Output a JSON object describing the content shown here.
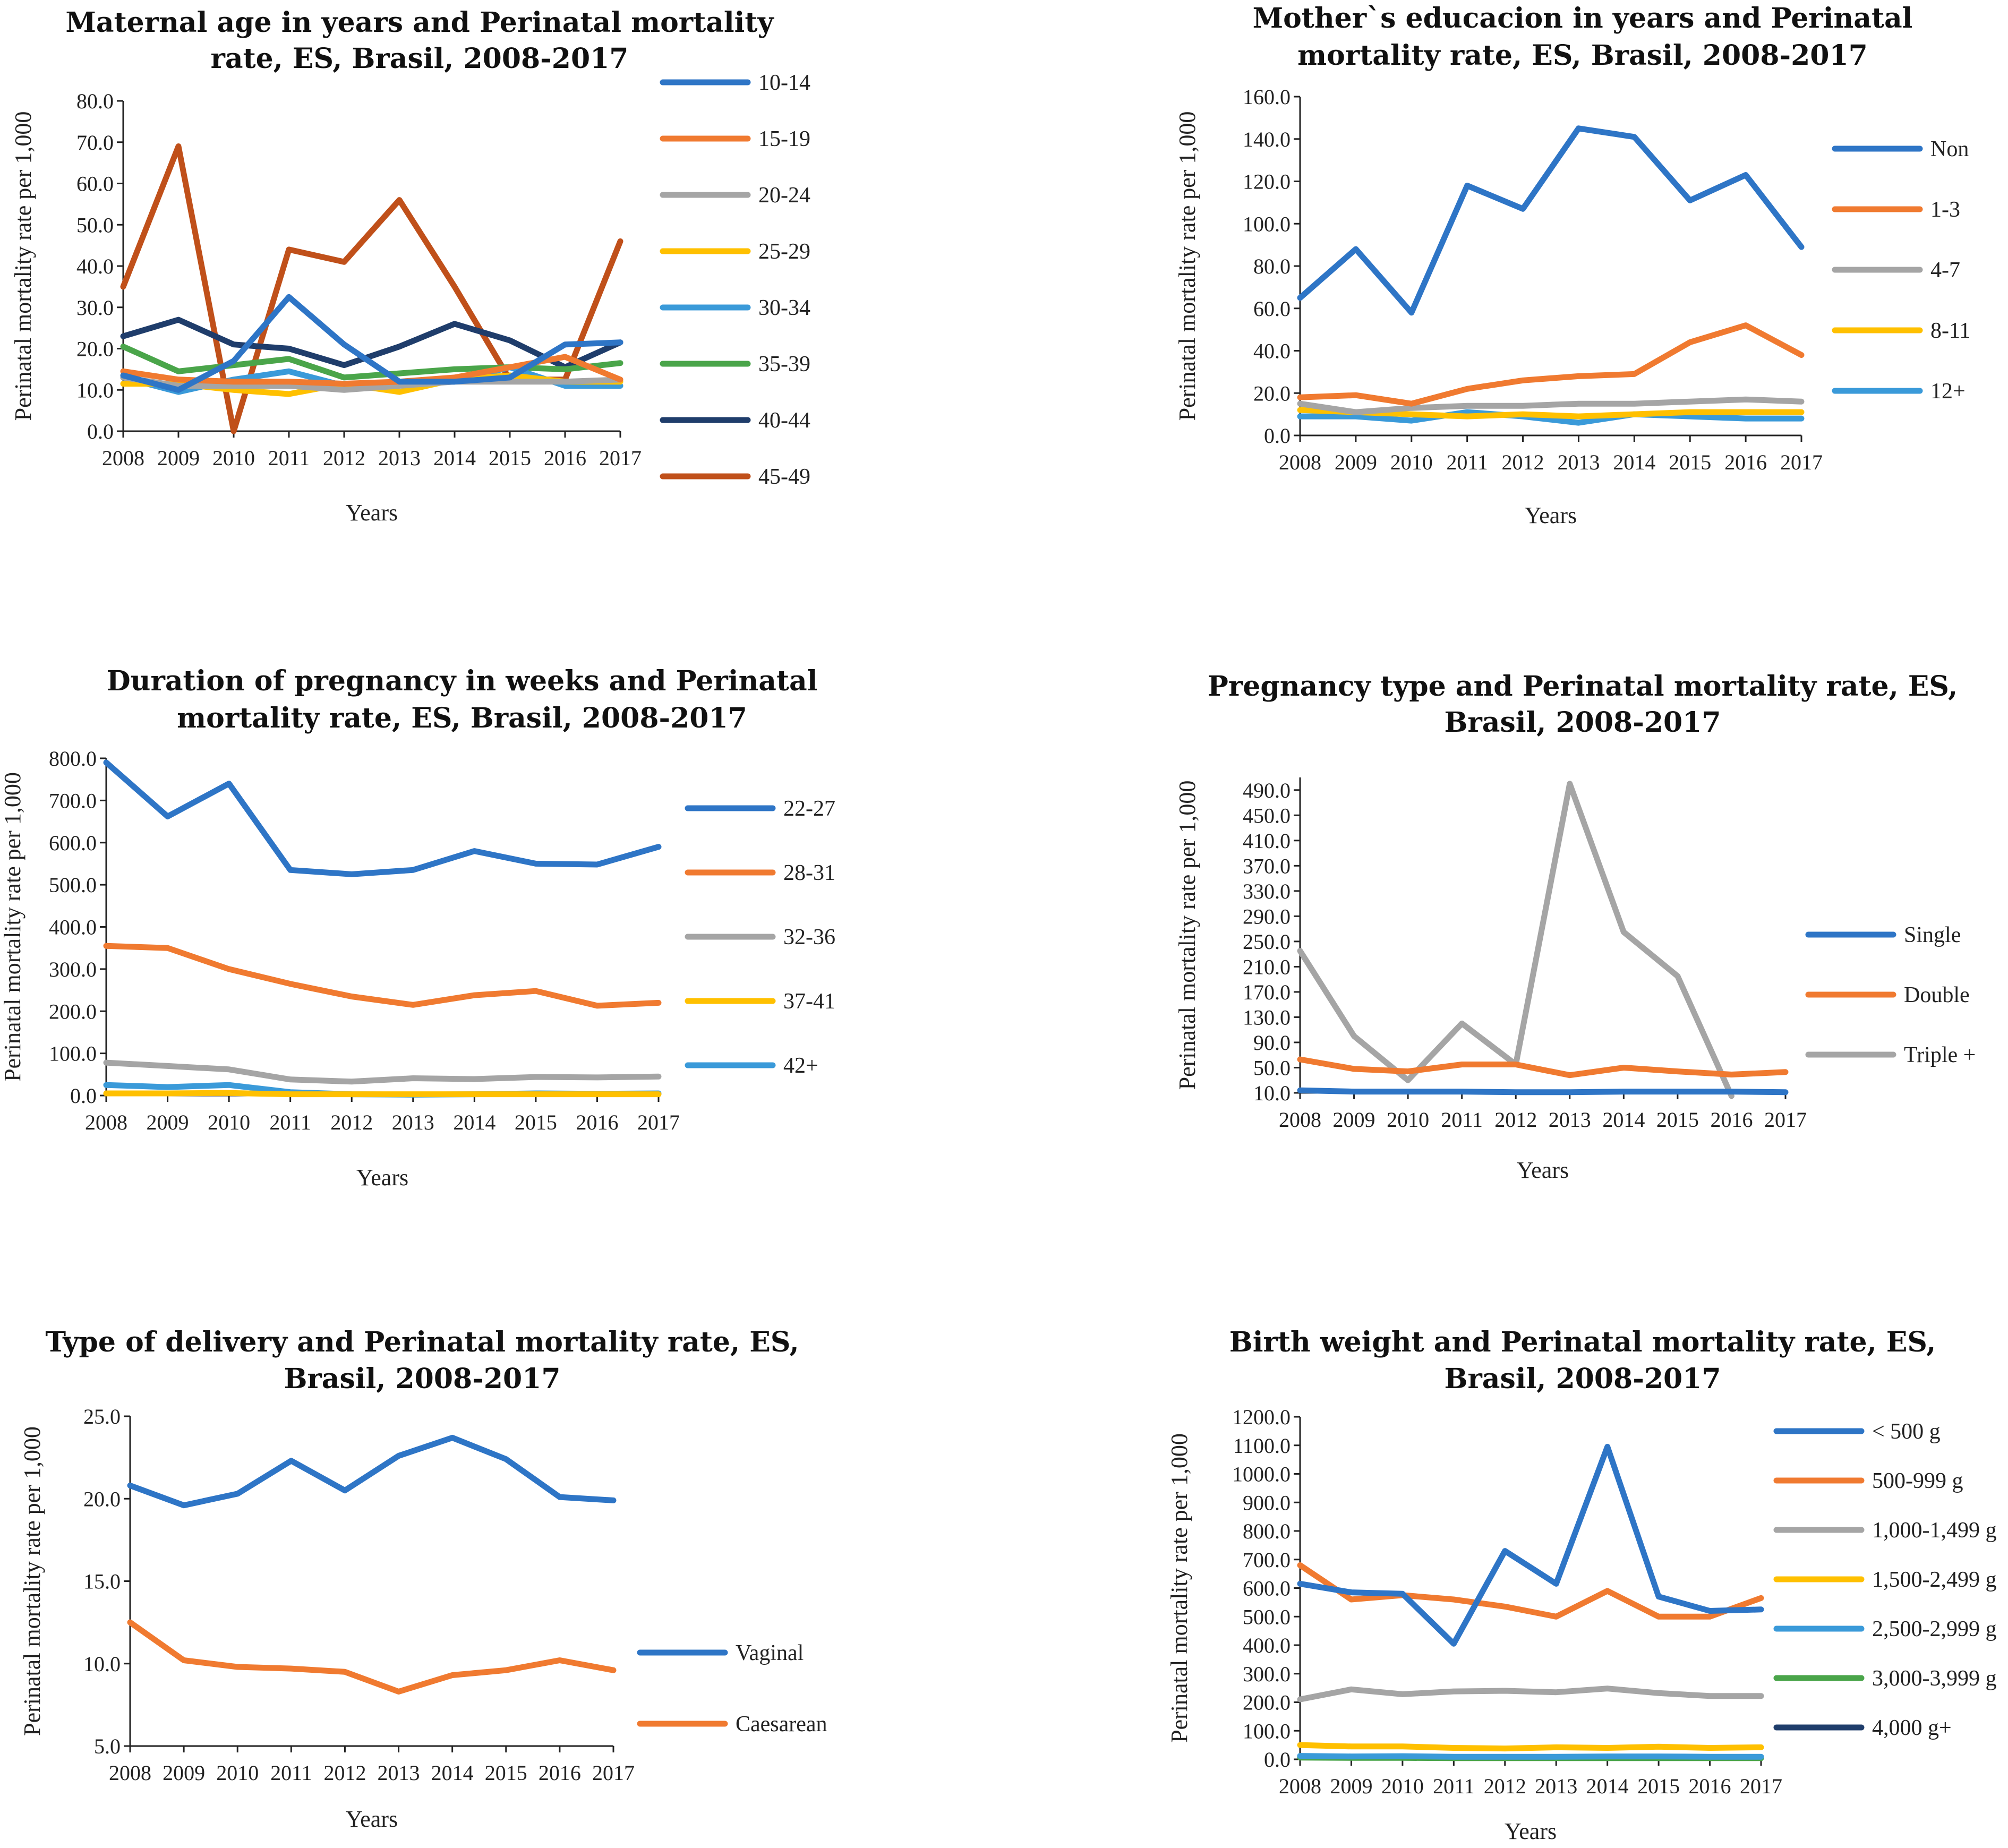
{
  "colors": {
    "blue": "#2e75c6",
    "orange": "#f07a30",
    "gray": "#a5a5a5",
    "yellow": "#ffc000",
    "lightblue": "#3a9ad9",
    "green": "#4aa54a",
    "navy": "#1f3d6b",
    "brown": "#c0501a"
  },
  "chart_data": [
    {
      "id": "maternal-age",
      "type": "line",
      "title": [
        "Maternal age in years and Perinatal mortality",
        "rate, ES, Brasil, 2008-2017"
      ],
      "xlabel": "Years",
      "ylabel": "Perinatal mortality rate per 1,000",
      "x": [
        "2008",
        "2009",
        "2010",
        "2011",
        "2012",
        "2013",
        "2014",
        "2015",
        "2016",
        "2017"
      ],
      "ylim": [
        0,
        80
      ],
      "yticks": [
        "0.0",
        "10.0",
        "20.0",
        "30.0",
        "40.0",
        "50.0",
        "60.0",
        "70.0",
        "80.0"
      ],
      "legend_position": "right",
      "series": [
        {
          "name": "10-14",
          "color": "blue",
          "values": [
            13.5,
            10,
            17,
            32.5,
            21,
            12,
            12,
            13,
            21,
            21.5
          ]
        },
        {
          "name": "15-19",
          "color": "orange",
          "values": [
            14.5,
            12.5,
            12,
            12,
            11.5,
            12,
            13,
            15.5,
            18,
            12.5
          ]
        },
        {
          "name": "20-24",
          "color": "gray",
          "values": [
            13,
            11,
            11,
            11,
            10,
            11,
            12,
            12,
            12,
            12.5
          ]
        },
        {
          "name": "25-29",
          "color": "yellow",
          "values": [
            11.5,
            11.5,
            10,
            9,
            11.5,
            9.5,
            12.5,
            13.5,
            12,
            12
          ]
        },
        {
          "name": "30-34",
          "color": "lightblue",
          "values": [
            13,
            9.5,
            12.5,
            14.5,
            11,
            11.5,
            12,
            15.5,
            11,
            11
          ]
        },
        {
          "name": "35-39",
          "color": "green",
          "values": [
            20.5,
            14.5,
            16,
            17.5,
            13,
            14,
            15,
            15.5,
            15,
            16.5
          ]
        },
        {
          "name": "40-44",
          "color": "navy",
          "values": [
            23,
            27,
            21,
            20,
            16,
            20.5,
            26,
            22,
            15.5,
            21.5
          ]
        },
        {
          "name": "45-49",
          "color": "brown",
          "values": [
            35,
            69,
            0,
            44,
            41,
            56,
            35,
            12.5,
            12.5,
            46
          ]
        }
      ]
    },
    {
      "id": "mother-education",
      "type": "line",
      "title": [
        "Mother`s educacion in years and Perinatal",
        "mortality rate, ES, Brasil, 2008-2017"
      ],
      "xlabel": "Years",
      "ylabel": "Perinatal mortality rate per 1,000",
      "x": [
        "2008",
        "2009",
        "2010",
        "2011",
        "2012",
        "2013",
        "2014",
        "2015",
        "2016",
        "2017"
      ],
      "ylim": [
        0,
        160
      ],
      "yticks": [
        "0.0",
        "20.0",
        "40.0",
        "60.0",
        "80.0",
        "100.0",
        "120.0",
        "140.0",
        "160.0"
      ],
      "legend_position": "right",
      "series": [
        {
          "name": "Non",
          "color": "blue",
          "values": [
            65,
            88,
            58,
            118,
            107,
            145,
            141,
            111,
            123,
            89
          ]
        },
        {
          "name": "1-3",
          "color": "orange",
          "values": [
            18,
            19,
            15,
            22,
            26,
            28,
            29,
            44,
            52,
            38
          ]
        },
        {
          "name": "4-7",
          "color": "gray",
          "values": [
            15,
            11,
            13,
            14,
            14,
            15,
            15,
            16,
            17,
            16
          ]
        },
        {
          "name": "8-11",
          "color": "yellow",
          "values": [
            12,
            11,
            10,
            9,
            10,
            9,
            10,
            11,
            11,
            11
          ]
        },
        {
          "name": "12+",
          "color": "lightblue",
          "values": [
            9,
            9,
            7,
            11,
            9,
            6,
            10,
            9,
            8,
            8
          ]
        }
      ]
    },
    {
      "id": "pregnancy-duration",
      "type": "line",
      "title": [
        "Duration of pregnancy in weeks and Perinatal",
        "mortality rate, ES, Brasil, 2008-2017"
      ],
      "xlabel": "Years",
      "ylabel": "Perinatal mortality rate per 1,000",
      "x": [
        "2008",
        "2009",
        "2010",
        "2011",
        "2012",
        "2013",
        "2014",
        "2015",
        "2016",
        "2017"
      ],
      "ylim": [
        0,
        800
      ],
      "yticks": [
        "0.0",
        "100.0",
        "200.0",
        "300.0",
        "400.0",
        "500.0",
        "600.0",
        "700.0",
        "800.0"
      ],
      "legend_position": "right",
      "series": [
        {
          "name": "22-27",
          "color": "blue",
          "values": [
            790,
            662,
            740,
            535,
            525,
            535,
            580,
            550,
            548,
            590
          ]
        },
        {
          "name": "28-31",
          "color": "orange",
          "values": [
            355,
            350,
            300,
            265,
            235,
            215,
            238,
            248,
            213,
            220
          ]
        },
        {
          "name": "32-36",
          "color": "gray",
          "values": [
            78,
            70,
            62,
            38,
            33,
            41,
            39,
            44,
            43,
            45
          ]
        },
        {
          "name": "37-41",
          "color": "yellow",
          "values": [
            5,
            5,
            6,
            3,
            3,
            3,
            3,
            3,
            3,
            3
          ]
        },
        {
          "name": "42+",
          "color": "lightblue",
          "values": [
            25,
            20,
            25,
            8,
            3,
            2,
            3,
            5,
            4,
            5
          ]
        }
      ]
    },
    {
      "id": "pregnancy-type",
      "type": "line",
      "title": [
        "Pregnancy type and Perinatal mortality rate, ES,",
        "Brasil, 2008-2017"
      ],
      "xlabel": "Years",
      "ylabel": "Perinatal mortality rate per 1,000",
      "x": [
        "2008",
        "2009",
        "2010",
        "2011",
        "2012",
        "2013",
        "2014",
        "2015",
        "2016",
        "2017"
      ],
      "ylim": [
        10,
        510
      ],
      "yticks": [
        "10.0",
        "50.0",
        "90.0",
        "130.0",
        "170.0",
        "210.0",
        "250.0",
        "290.0",
        "330.0",
        "370.0",
        "410.0",
        "450.0",
        "490.0"
      ],
      "legend_position": "right",
      "series": [
        {
          "name": "Single",
          "color": "blue",
          "values": [
            14,
            12,
            12,
            12,
            11,
            11,
            12,
            12,
            12,
            11
          ]
        },
        {
          "name": "Double",
          "color": "orange",
          "values": [
            63,
            48,
            44,
            55,
            55,
            38,
            50,
            44,
            39,
            43
          ]
        },
        {
          "name": "Triple +",
          "color": "gray",
          "values": [
            235,
            100,
            30,
            120,
            55,
            500,
            265,
            195,
            5,
            null
          ]
        }
      ]
    },
    {
      "id": "delivery-type",
      "type": "line",
      "title": [
        "Type of delivery and Perinatal mortality rate, ES,",
        "Brasil, 2008-2017"
      ],
      "xlabel": "Years",
      "ylabel": "Perinatal mortality rate per 1,000",
      "x": [
        "2008",
        "2009",
        "2010",
        "2011",
        "2012",
        "2013",
        "2014",
        "2015",
        "2016",
        "2017"
      ],
      "ylim": [
        5,
        25
      ],
      "yticks": [
        "5.0",
        "10.0",
        "15.0",
        "20.0",
        "25.0"
      ],
      "legend_position": "right",
      "series": [
        {
          "name": "Vaginal",
          "color": "blue",
          "values": [
            20.8,
            19.6,
            20.3,
            22.3,
            20.5,
            22.6,
            23.7,
            22.4,
            20.1,
            19.9
          ]
        },
        {
          "name": "Caesarean",
          "color": "orange",
          "values": [
            12.5,
            10.2,
            9.8,
            9.7,
            9.5,
            8.3,
            9.3,
            9.6,
            10.2,
            9.6
          ]
        }
      ]
    },
    {
      "id": "birth-weight",
      "type": "line",
      "title": [
        "Birth weight and Perinatal mortality rate, ES,",
        "Brasil, 2008-2017"
      ],
      "xlabel": "Years",
      "ylabel": "Perinatal mortality rate per 1,000",
      "x": [
        "2008",
        "2009",
        "2010",
        "2011",
        "2012",
        "2013",
        "2014",
        "2015",
        "2016",
        "2017"
      ],
      "ylim": [
        0,
        1200
      ],
      "yticks": [
        "0.0",
        "100.0",
        "200.0",
        "300.0",
        "400.0",
        "500.0",
        "600.0",
        "700.0",
        "800.0",
        "900.0",
        "1000.0",
        "1100.0",
        "1200.0"
      ],
      "legend_position": "right",
      "series": [
        {
          "name": "< 500 g",
          "color": "blue",
          "values": [
            615,
            585,
            580,
            405,
            730,
            615,
            1095,
            570,
            520,
            525
          ]
        },
        {
          "name": "500-999 g",
          "color": "orange",
          "values": [
            680,
            560,
            575,
            560,
            535,
            500,
            590,
            500,
            500,
            565
          ]
        },
        {
          "name": "1,000-1,499 g",
          "color": "gray",
          "values": [
            210,
            245,
            228,
            238,
            240,
            235,
            248,
            232,
            222,
            222
          ]
        },
        {
          "name": "1,500-2,499 g",
          "color": "yellow",
          "values": [
            50,
            45,
            45,
            40,
            38,
            42,
            40,
            44,
            40,
            42
          ]
        },
        {
          "name": "2,500-2,999 g",
          "color": "lightblue",
          "values": [
            12,
            10,
            11,
            9,
            9,
            9,
            10,
            10,
            9,
            9
          ]
        },
        {
          "name": "3,000-3,999 g",
          "color": "green",
          "values": [
            6,
            5,
            5,
            4,
            4,
            4,
            4,
            4,
            4,
            4
          ]
        },
        {
          "name": "4,000 g+",
          "color": "navy",
          "values": [
            10,
            8,
            9,
            8,
            7,
            8,
            7,
            8,
            8,
            7
          ]
        }
      ]
    }
  ]
}
